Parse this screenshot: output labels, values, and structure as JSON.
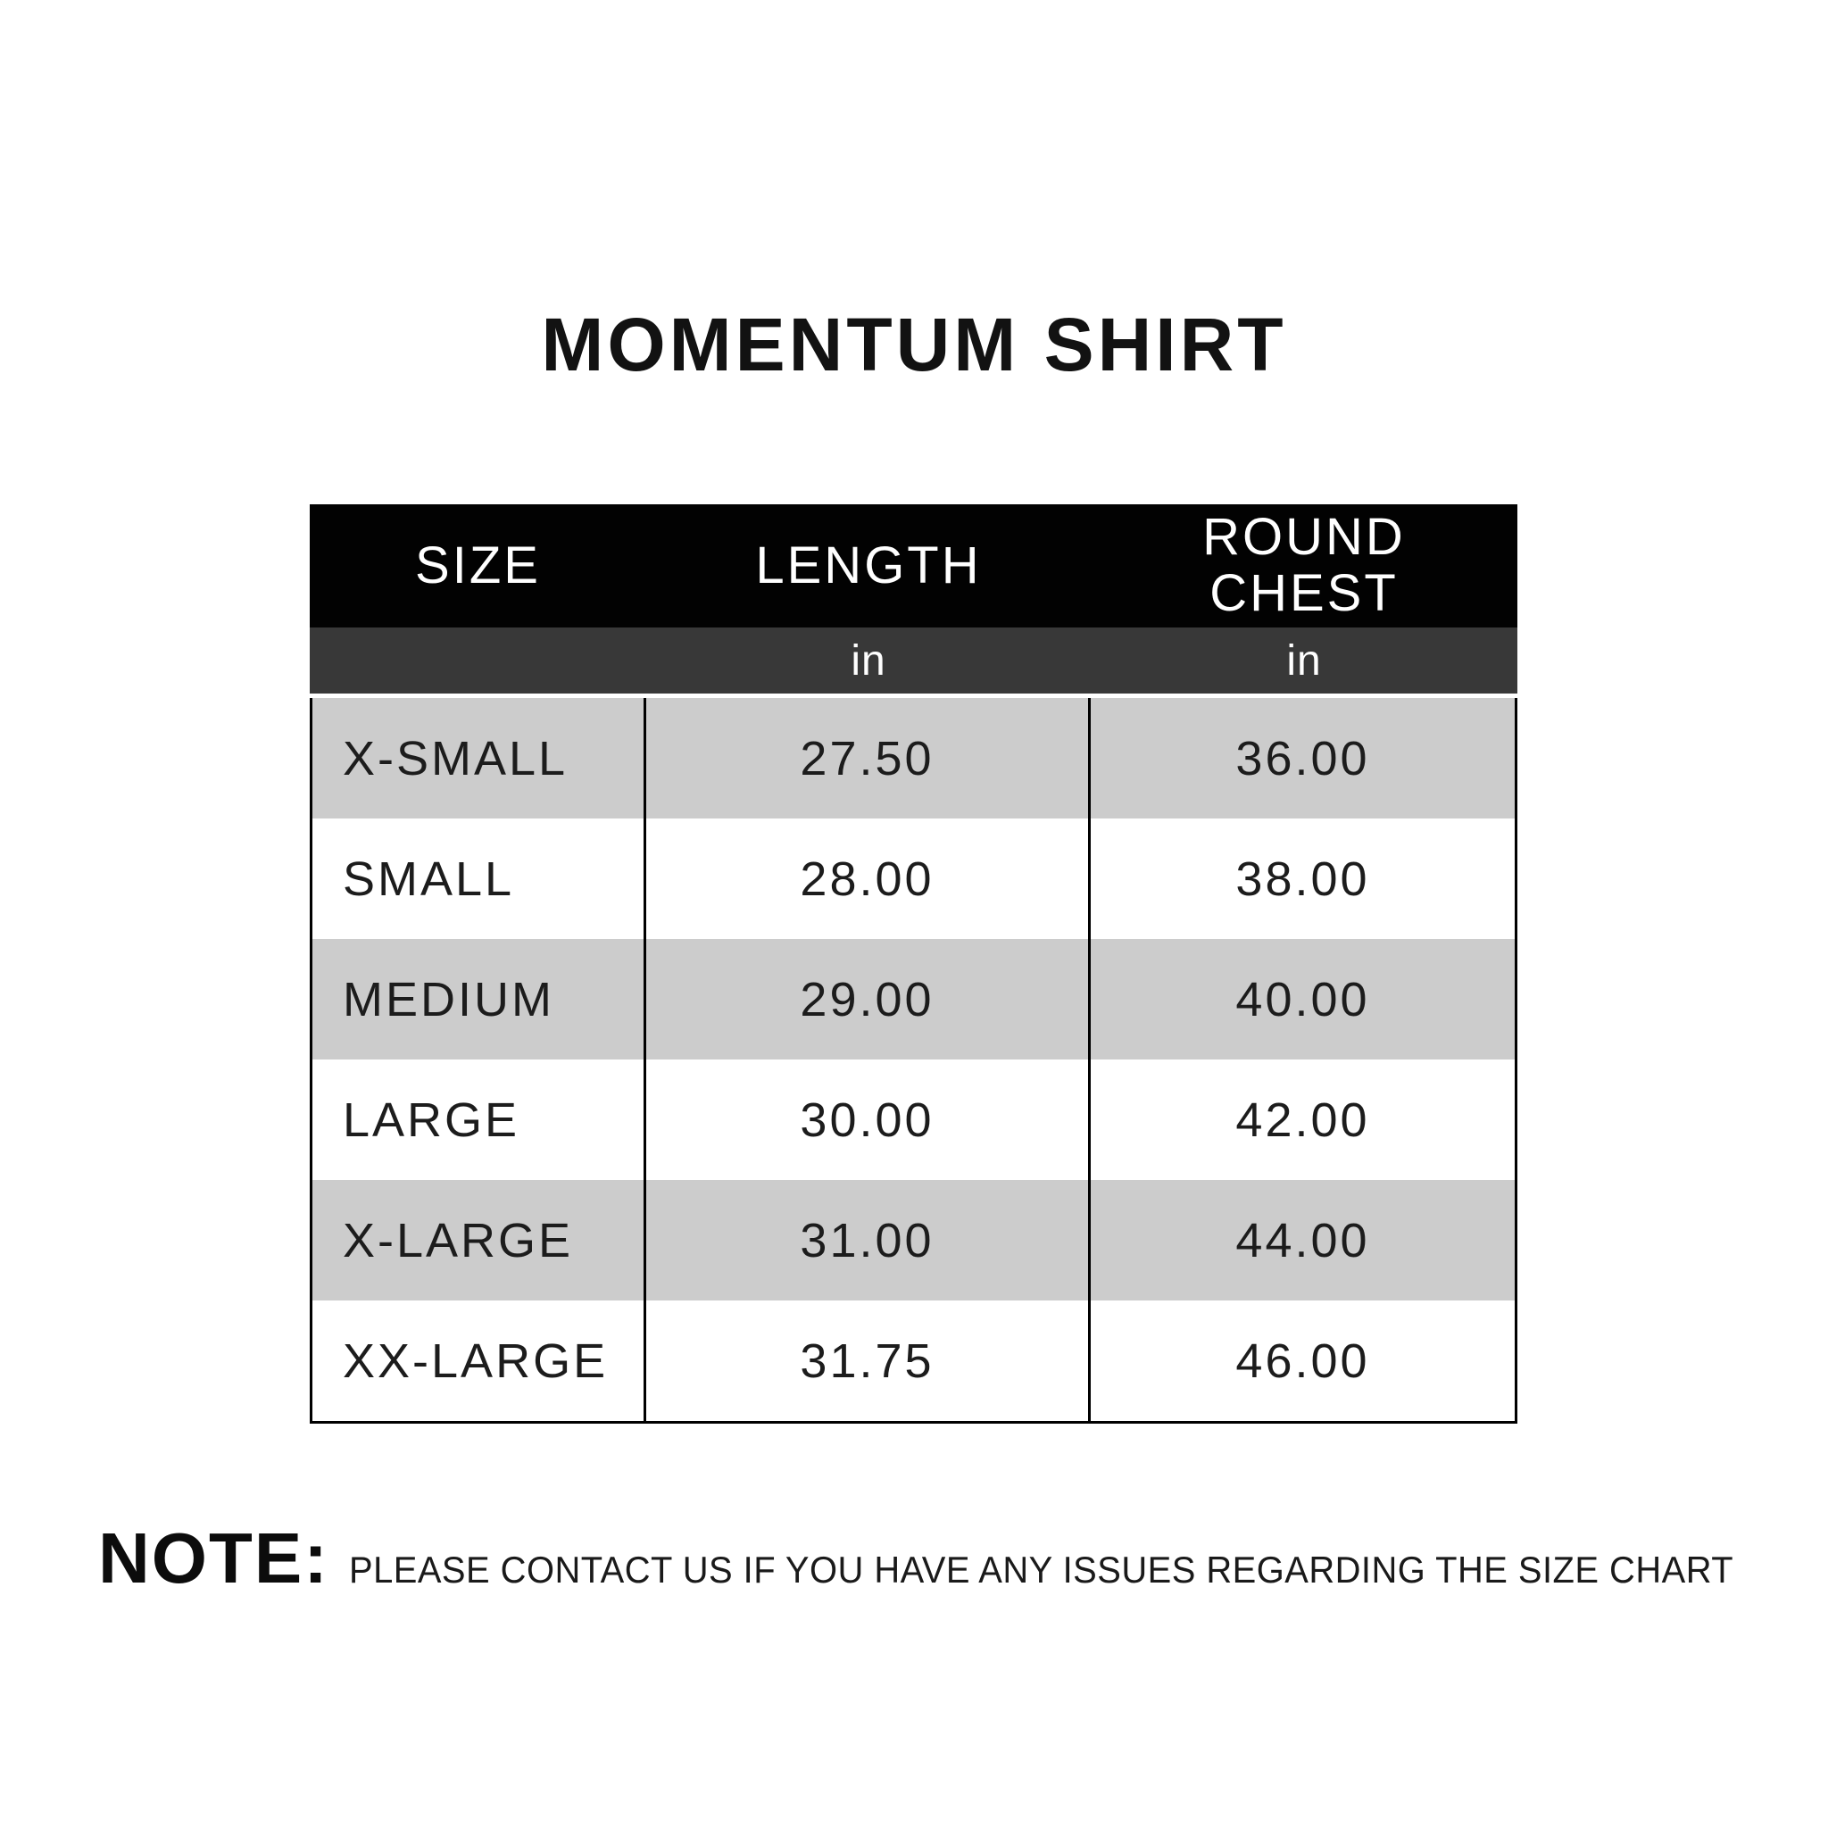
{
  "title": "MOMENTUM SHIRT",
  "table": {
    "columns": [
      {
        "label": "SIZE",
        "unit": ""
      },
      {
        "label": "LENGTH",
        "unit": "in"
      },
      {
        "label": "ROUND CHEST",
        "unit": "in"
      }
    ],
    "rows": [
      {
        "size": "X-SMALL",
        "length": "27.50",
        "round_chest": "36.00"
      },
      {
        "size": "SMALL",
        "length": "28.00",
        "round_chest": "38.00"
      },
      {
        "size": "MEDIUM",
        "length": "29.00",
        "round_chest": "40.00"
      },
      {
        "size": "LARGE",
        "length": "30.00",
        "round_chest": "42.00"
      },
      {
        "size": "X-LARGE",
        "length": "31.00",
        "round_chest": "44.00"
      },
      {
        "size": "XX-LARGE",
        "length": "31.75",
        "round_chest": "46.00"
      }
    ]
  },
  "note": {
    "label": "NOTE:",
    "text": "PLEASE CONTACT US IF YOU HAVE ANY ISSUES REGARDING THE SIZE CHART"
  },
  "colors": {
    "page_background": "#ffffff",
    "header_background": "#020202",
    "header_text": "#ffffff",
    "unit_row_background": "#383838",
    "row_alt_background": "#cccccc",
    "row_background": "#ffffff",
    "border": "#000000",
    "body_text": "#1c1c1c"
  }
}
